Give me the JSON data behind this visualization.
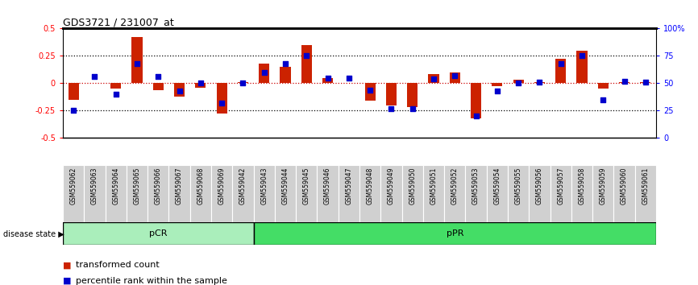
{
  "title": "GDS3721 / 231007_at",
  "samples": [
    "GSM559062",
    "GSM559063",
    "GSM559064",
    "GSM559065",
    "GSM559066",
    "GSM559067",
    "GSM559068",
    "GSM559069",
    "GSM559042",
    "GSM559043",
    "GSM559044",
    "GSM559045",
    "GSM559046",
    "GSM559047",
    "GSM559048",
    "GSM559049",
    "GSM559050",
    "GSM559051",
    "GSM559052",
    "GSM559053",
    "GSM559054",
    "GSM559055",
    "GSM559056",
    "GSM559057",
    "GSM559058",
    "GSM559059",
    "GSM559060",
    "GSM559061"
  ],
  "transformed_count": [
    -0.15,
    0.0,
    -0.05,
    0.42,
    -0.06,
    -0.12,
    -0.04,
    -0.28,
    0.01,
    0.18,
    0.15,
    0.35,
    0.05,
    0.0,
    -0.16,
    -0.2,
    -0.22,
    0.08,
    0.1,
    -0.32,
    -0.03,
    0.03,
    0.01,
    0.22,
    0.3,
    -0.05,
    0.01,
    0.01
  ],
  "percentile_rank": [
    25,
    56,
    40,
    68,
    56,
    43,
    50,
    32,
    50,
    60,
    68,
    75,
    55,
    55,
    44,
    27,
    27,
    54,
    57,
    20,
    43,
    50,
    51,
    68,
    75,
    35,
    52,
    51
  ],
  "pcr_count": 9,
  "ppr_count": 19,
  "groups": [
    {
      "label": "pCR",
      "start": 0,
      "end": 9,
      "color": "#aaeebb"
    },
    {
      "label": "pPR",
      "start": 9,
      "end": 28,
      "color": "#44dd66"
    }
  ],
  "bar_color": "#cc2200",
  "dot_color": "#0000cc",
  "ylim": [
    -0.5,
    0.5
  ],
  "yticks_left": [
    -0.5,
    -0.25,
    0.0,
    0.25,
    0.5
  ],
  "ytick_labels_left": [
    "-0.5",
    "-0.25",
    "0",
    "0.25",
    "0.5"
  ],
  "yticks_right": [
    0,
    25,
    50,
    75,
    100
  ],
  "ytick_labels_right": [
    "0",
    "25",
    "50",
    "75",
    "100%"
  ],
  "hline_zero_color": "#cc0000",
  "hline_zero_style": "dotted",
  "hline_25_color": "black",
  "hline_25_style": "dotted",
  "disease_state_label": "disease state",
  "legend_items": [
    {
      "label": "transformed count",
      "color": "#cc2200"
    },
    {
      "label": "percentile rank within the sample",
      "color": "#0000cc"
    }
  ]
}
